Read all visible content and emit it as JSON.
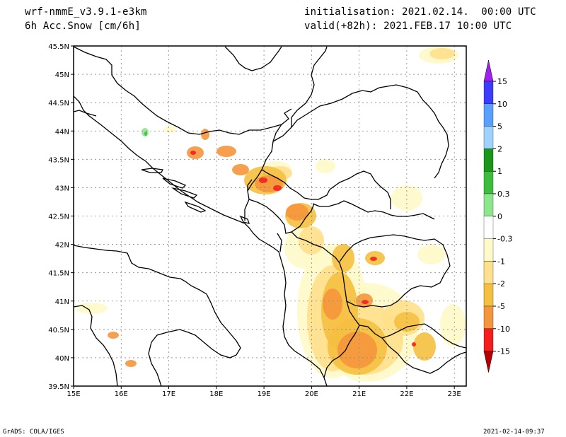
{
  "header": {
    "model": "wrf-nmmE_v3.9.1-e3km",
    "field": "6h Acc.Snow [cm/6h]",
    "init": "initialisation: 2021.02.14.  00:00 UTC",
    "valid": "valid(+82h): 2021.FEB.17 10:00 UTC"
  },
  "footer": {
    "credit": "GrADS: COLA/IGES",
    "timestamp": "2021-02-14-09:37"
  },
  "map": {
    "lon_ticks": [
      "15E",
      "16E",
      "17E",
      "18E",
      "19E",
      "20E",
      "21E",
      "22E",
      "23E"
    ],
    "lat_ticks": [
      "39.5N",
      "40N",
      "40.5N",
      "41N",
      "41.5N",
      "42N",
      "42.5N",
      "43N",
      "43.5N",
      "44N",
      "44.5N",
      "45N",
      "45.5N"
    ],
    "lon_range": [
      15,
      23.25
    ],
    "lat_range": [
      39.5,
      45.5
    ]
  },
  "colorbar": {
    "labels": [
      "15",
      "10",
      "5",
      "2",
      "1",
      "0.3",
      "0",
      "-0.3",
      "-1",
      "-2",
      "-5",
      "-10",
      "-15"
    ],
    "colors": [
      "#a020f0",
      "#3c3cff",
      "#5aa0ff",
      "#a0d2ff",
      "#1a961a",
      "#3cbe3c",
      "#8ce68c",
      "#ffffff",
      "#fffac8",
      "#ffe08c",
      "#f5c040",
      "#f5963c",
      "#f51e1e",
      "#b40000"
    ]
  },
  "legend_colors": {
    "very_light": "#fffac8",
    "light": "#ffe08c",
    "moderate": "#f5c040",
    "heavy": "#f5963c",
    "very_heavy": "#f51e1e",
    "extreme": "#b40000",
    "green_light": "#8ce68c",
    "green": "#3cbe3c"
  }
}
